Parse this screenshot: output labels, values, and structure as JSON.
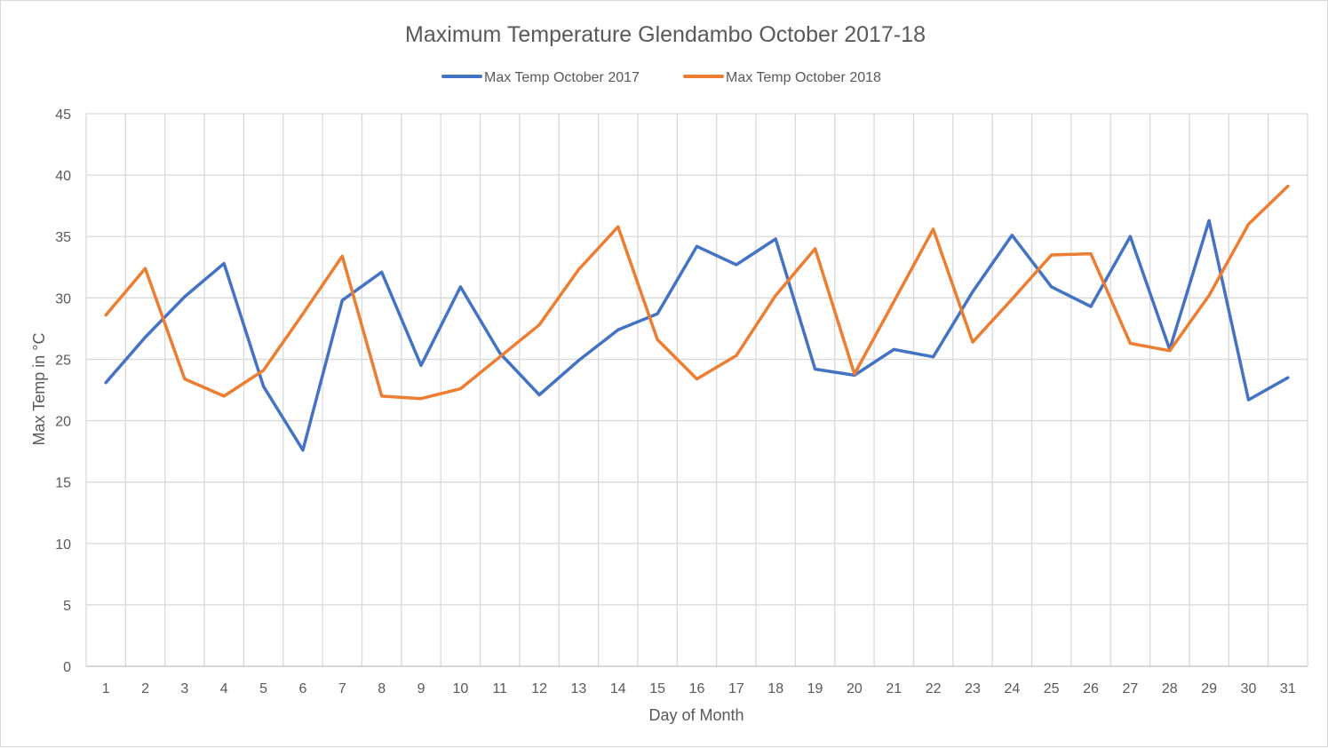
{
  "chart_data": {
    "type": "line",
    "title": "Maximum Temperature  Glendambo October 2017-18",
    "xlabel": "Day of Month",
    "ylabel": "Max Temp in °C",
    "ylim": [
      0,
      45
    ],
    "yticks": [
      "0",
      "5",
      "10",
      "15",
      "20",
      "25",
      "30",
      "35",
      "40",
      "45"
    ],
    "categories": [
      "1",
      "2",
      "3",
      "4",
      "5",
      "6",
      "7",
      "8",
      "9",
      "10",
      "11",
      "12",
      "13",
      "14",
      "15",
      "16",
      "17",
      "18",
      "19",
      "20",
      "21",
      "22",
      "23",
      "24",
      "25",
      "26",
      "27",
      "28",
      "29",
      "30",
      "31"
    ],
    "grid": true,
    "legend_position": "top",
    "series": [
      {
        "name": "Max Temp October 2017",
        "color": "#4472c4",
        "values": [
          23.1,
          26.8,
          30.1,
          32.8,
          22.8,
          17.6,
          29.8,
          32.1,
          24.5,
          30.9,
          25.5,
          22.1,
          24.9,
          27.4,
          28.7,
          34.2,
          32.7,
          34.8,
          24.2,
          23.7,
          25.8,
          25.2,
          30.5,
          35.1,
          30.9,
          29.3,
          35.0,
          25.8,
          36.3,
          21.7,
          23.5
        ]
      },
      {
        "name": "Max Temp October 2018",
        "color": "#ed7d31",
        "values": [
          28.6,
          32.4,
          23.4,
          22.0,
          24.1,
          28.7,
          33.4,
          22.0,
          21.8,
          22.6,
          25.2,
          27.8,
          32.3,
          35.8,
          26.6,
          23.4,
          25.3,
          30.2,
          34.0,
          23.8,
          29.7,
          35.6,
          26.4,
          29.9,
          33.5,
          33.6,
          26.3,
          25.7,
          30.2,
          36.0,
          39.1
        ]
      }
    ]
  }
}
